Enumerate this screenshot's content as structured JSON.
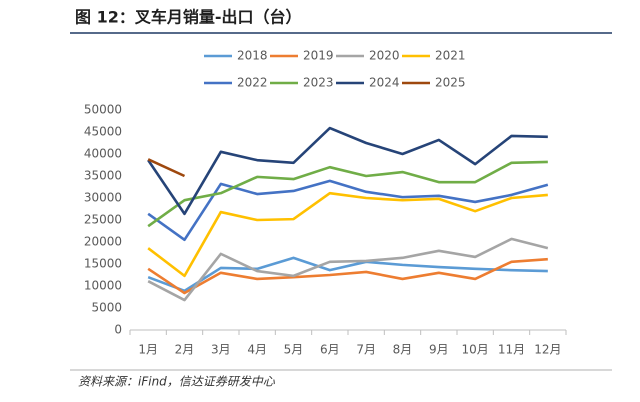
{
  "chart_data": {
    "type": "line",
    "title": "图 12：叉车月销量-出口（台）",
    "source": "资料来源：iFind，信达证券研发中心",
    "categories": [
      "1月",
      "2月",
      "3月",
      "4月",
      "5月",
      "6月",
      "7月",
      "8月",
      "9月",
      "10月",
      "11月",
      "12月"
    ],
    "ylim": [
      0,
      50000
    ],
    "yticks": [
      0,
      5000,
      10000,
      15000,
      20000,
      25000,
      30000,
      35000,
      40000,
      45000,
      50000
    ],
    "grid": false,
    "legend": "top",
    "series": [
      {
        "name": "2018",
        "color": "#5b9bd5",
        "values": [
          12000,
          8900,
          14100,
          13900,
          16400,
          13600,
          15500,
          14800,
          14300,
          13900,
          13600,
          13400
        ]
      },
      {
        "name": "2019",
        "color": "#ed7d31",
        "values": [
          13900,
          8400,
          13000,
          11600,
          12000,
          12500,
          13200,
          11600,
          13000,
          11600,
          15500,
          16100
        ]
      },
      {
        "name": "2020",
        "color": "#a5a5a5",
        "values": [
          11100,
          6800,
          17300,
          13400,
          12300,
          15500,
          15700,
          16400,
          18000,
          16600,
          20700,
          18600
        ]
      },
      {
        "name": "2021",
        "color": "#ffc000",
        "values": [
          18600,
          12300,
          26800,
          25000,
          25200,
          31100,
          30000,
          29500,
          29800,
          27000,
          30000,
          30700
        ]
      },
      {
        "name": "2022",
        "color": "#4472c4",
        "values": [
          26400,
          20500,
          33200,
          30900,
          31600,
          33900,
          31400,
          30200,
          30500,
          29100,
          30700,
          33000
        ]
      },
      {
        "name": "2023",
        "color": "#70ad47",
        "values": [
          23600,
          29500,
          31100,
          34800,
          34300,
          37000,
          35000,
          35900,
          33600,
          33600,
          38000,
          38200
        ]
      },
      {
        "name": "2024",
        "color": "#264478",
        "values": [
          38600,
          26400,
          40500,
          38600,
          38000,
          45900,
          42500,
          40000,
          43200,
          37700,
          44100,
          43900
        ]
      },
      {
        "name": "2025",
        "color": "#9e480e",
        "values": [
          38800,
          35000,
          null,
          null,
          null,
          null,
          null,
          null,
          null,
          null,
          null,
          null
        ]
      }
    ]
  }
}
